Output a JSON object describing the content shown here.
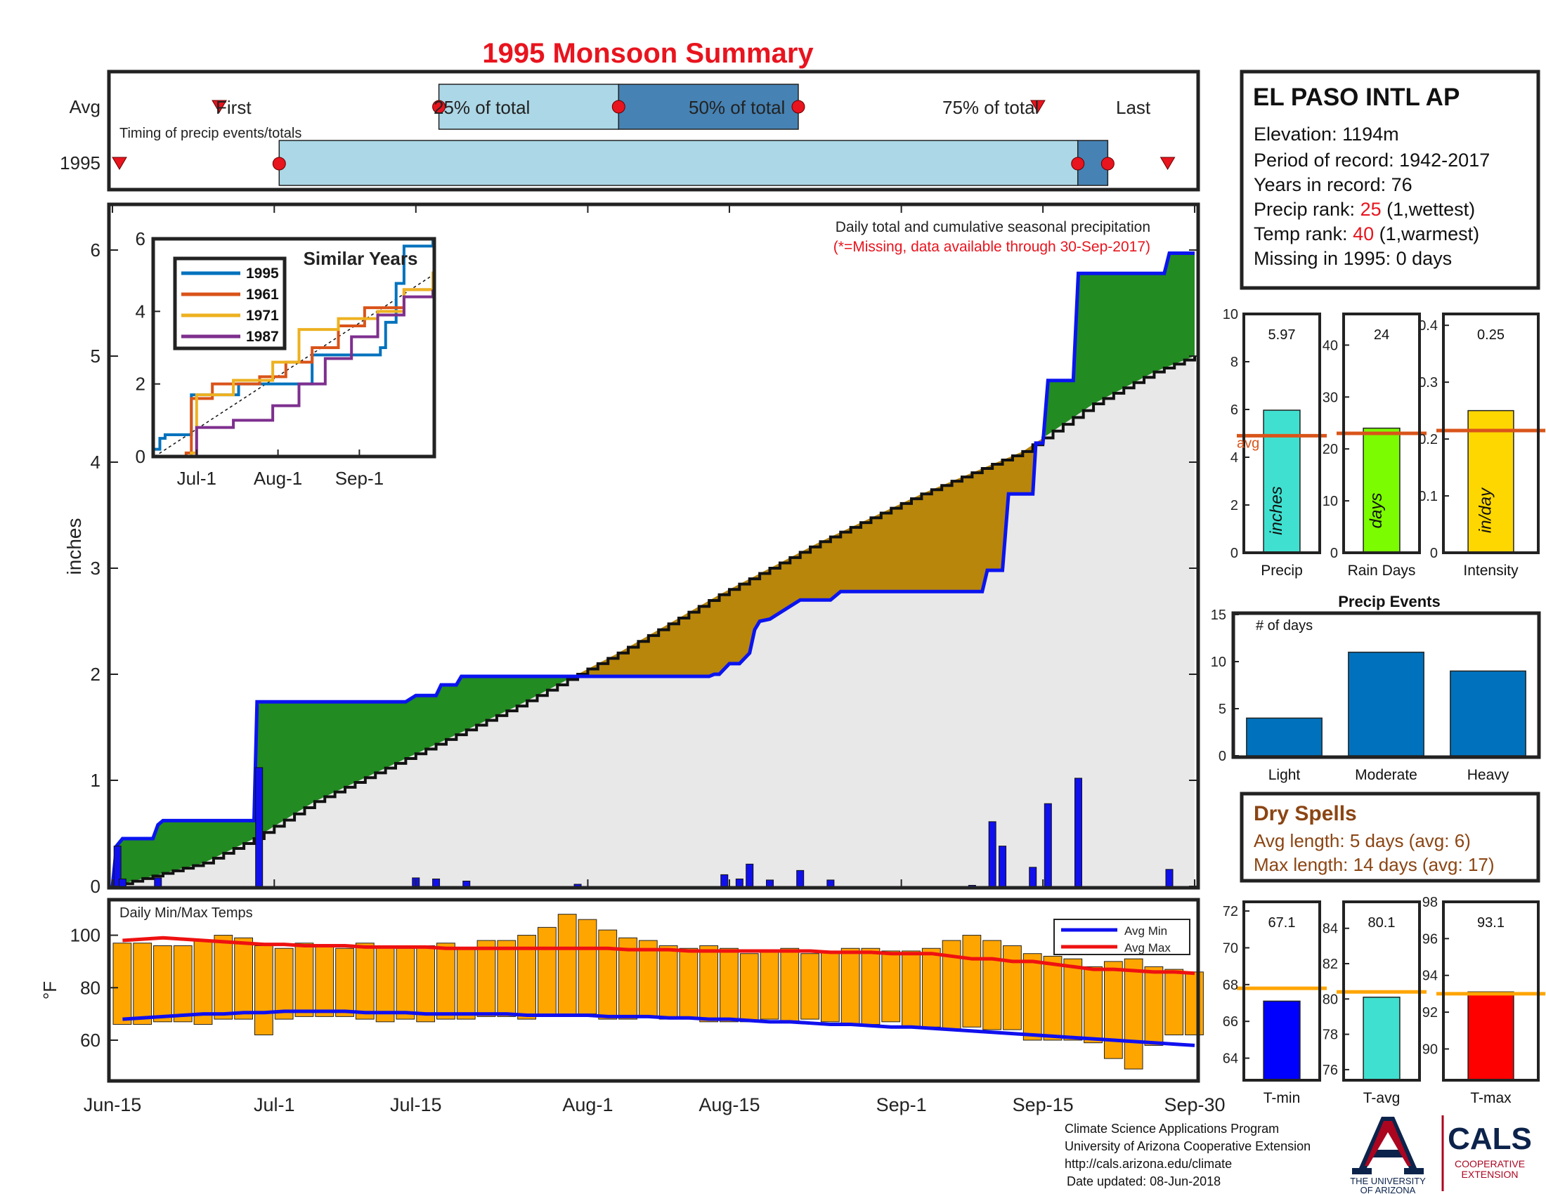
{
  "title": "1995 Monsoon Summary",
  "colors": {
    "title_red": "#e8141e",
    "green": "#228b22",
    "brown": "#b8860b",
    "climo_fill": "#e9e8e8",
    "obs_line": "#0a14f0",
    "bar_blue": "#1010ee",
    "light_blue": "#acd7e6",
    "mid_blue": "#4682b4",
    "orange_bar": "#ffa500",
    "tmax_red": "#ee1111",
    "avg_orange": "#d9541a"
  },
  "timing": {
    "row_labels": [
      "Avg",
      "1995"
    ],
    "note": "Timing of precip events/totals",
    "markers": {
      "first": "First",
      "p25": "25% of total",
      "p50": "50% of total",
      "p75": "75% of total",
      "last": "Last"
    },
    "avg_days": {
      "first": 10,
      "p25": 32,
      "p50": 50,
      "p75": 68,
      "last": 92
    },
    "year_days": {
      "first": 0,
      "p25": 16,
      "p50": 96,
      "p75": 99,
      "last": 105
    }
  },
  "station": {
    "name": "EL PASO INTL AP",
    "elevation": "Elevation: 1194m",
    "period": "Period of record: 1942-2017",
    "years": "Years in record: 76",
    "precip_rank_label": "Precip rank: ",
    "precip_rank_value": "25",
    "precip_rank_note": " (1,wettest)",
    "temp_rank_label": "Temp rank: ",
    "temp_rank_value": "40",
    "temp_rank_note": " (1,warmest)",
    "missing": "Missing in 1995: 0 days"
  },
  "main_chart": {
    "annotation": "Daily total and cumulative seasonal precipitation",
    "missing_note": "(*=Missing, data available through 30-Sep-2017)",
    "ylabel": "inches",
    "x_ticks": [
      "Jun-15",
      "Jul-1",
      "Jul-15",
      "Aug-1",
      "Aug-15",
      "Sep-1",
      "Sep-15",
      "Sep-30"
    ],
    "x_tick_days": [
      0,
      16,
      30,
      47,
      61,
      78,
      92,
      107
    ],
    "y_ticks": [
      "0",
      "1",
      "2",
      "3",
      "4",
      "5",
      "6"
    ],
    "ylim": [
      0,
      6.4
    ]
  },
  "chart_data": [
    {
      "type": "area",
      "title": "Daily total and cumulative seasonal precipitation",
      "ylabel": "inches",
      "x_unit": "day of season (Jun-15 = 0)",
      "ylim": [
        0,
        6.4
      ],
      "series": [
        {
          "name": "1995",
          "points": [
            [
              0,
              0
            ],
            [
              0.4,
              0.38
            ],
            [
              1,
              0.45
            ],
            [
              4,
              0.45
            ],
            [
              4.5,
              0.58
            ],
            [
              5,
              0.62
            ],
            [
              14,
              0.62
            ],
            [
              14.3,
              1.74
            ],
            [
              29,
              1.74
            ],
            [
              30,
              1.8
            ],
            [
              32,
              1.8
            ],
            [
              32.5,
              1.9
            ],
            [
              34,
              1.9
            ],
            [
              34.5,
              1.98
            ],
            [
              59,
              1.98
            ],
            [
              59.5,
              2.0
            ],
            [
              60,
              2.0
            ],
            [
              61,
              2.1
            ],
            [
              62,
              2.1
            ],
            [
              63,
              2.2
            ],
            [
              63.5,
              2.42
            ],
            [
              64,
              2.5
            ],
            [
              65,
              2.52
            ],
            [
              66,
              2.58
            ],
            [
              68,
              2.7
            ],
            [
              71,
              2.7
            ],
            [
              72,
              2.78
            ],
            [
              86,
              2.78
            ],
            [
              86.5,
              2.98
            ],
            [
              88,
              2.98
            ],
            [
              88.6,
              3.7
            ],
            [
              91,
              3.7
            ],
            [
              91.3,
              4.18
            ],
            [
              92,
              4.18
            ],
            [
              92.5,
              4.77
            ],
            [
              95,
              4.77
            ],
            [
              95.5,
              5.78
            ],
            [
              104,
              5.78
            ],
            [
              104.5,
              5.97
            ],
            [
              107,
              5.97
            ]
          ]
        },
        {
          "name": "Avg",
          "points": [
            [
              0,
              0
            ],
            [
              9,
              0.22
            ],
            [
              14,
              0.45
            ],
            [
              20,
              0.8
            ],
            [
              30,
              1.25
            ],
            [
              40,
              1.7
            ],
            [
              50,
              2.2
            ],
            [
              60,
              2.75
            ],
            [
              70,
              3.25
            ],
            [
              80,
              3.7
            ],
            [
              90,
              4.1
            ],
            [
              97,
              4.55
            ],
            [
              103,
              4.85
            ],
            [
              107,
              5.0
            ]
          ]
        }
      ]
    },
    {
      "type": "bar",
      "title": "Daily precipitation",
      "x_unit": "day of season (Jun-15 = 0)",
      "x": [
        0.5,
        1,
        4.5,
        14.5,
        30,
        32,
        35,
        46,
        60.5,
        62,
        63,
        65,
        68,
        71,
        85,
        87,
        88,
        91,
        92.5,
        95.5,
        104.5
      ],
      "values": [
        0.38,
        0.07,
        0.08,
        1.12,
        0.08,
        0.07,
        0.05,
        0.02,
        0.11,
        0.07,
        0.21,
        0.06,
        0.15,
        0.06,
        0.01,
        0.61,
        0.38,
        0.18,
        0.78,
        1.02,
        0.16
      ]
    },
    {
      "type": "line",
      "title": "Similar Years",
      "x_ticks": [
        "Jul-1",
        "Aug-1",
        "Sep-1"
      ],
      "y_ticks": [
        "0",
        "2",
        "4",
        "6"
      ],
      "ylim": [
        0,
        6
      ],
      "series": [
        {
          "name": "1995",
          "points": [
            [
              0,
              0.2
            ],
            [
              2,
              0.5
            ],
            [
              4,
              0.6
            ],
            [
              14,
              1.7
            ],
            [
              32,
              2.0
            ],
            [
              60,
              2.8
            ],
            [
              86,
              3
            ],
            [
              88,
              3.7
            ],
            [
              92,
              4.77
            ],
            [
              95,
              5.8
            ],
            [
              106,
              5.97
            ]
          ]
        },
        {
          "name": "1961",
          "points": [
            [
              0,
              0
            ],
            [
              12,
              0.1
            ],
            [
              14,
              1.6
            ],
            [
              22,
              2.0
            ],
            [
              40,
              2.2
            ],
            [
              50,
              2.6
            ],
            [
              60,
              3.0
            ],
            [
              70,
              3.6
            ],
            [
              80,
              4.1
            ],
            [
              95,
              4.6
            ],
            [
              106,
              5.0
            ]
          ]
        },
        {
          "name": "1971",
          "points": [
            [
              0,
              0
            ],
            [
              14,
              0.1
            ],
            [
              16,
              1.7
            ],
            [
              30,
              2.1
            ],
            [
              45,
              2.6
            ],
            [
              55,
              3.5
            ],
            [
              70,
              3.8
            ],
            [
              85,
              4.0
            ],
            [
              95,
              4.6
            ],
            [
              106,
              5.1
            ]
          ]
        },
        {
          "name": "1987",
          "points": [
            [
              0,
              0
            ],
            [
              16,
              0.8
            ],
            [
              30,
              1.0
            ],
            [
              45,
              1.4
            ],
            [
              55,
              2.0
            ],
            [
              65,
              2.7
            ],
            [
              75,
              3.3
            ],
            [
              85,
              3.9
            ],
            [
              95,
              4.4
            ],
            [
              106,
              4.6
            ]
          ]
        }
      ]
    },
    {
      "type": "bar",
      "title": "Daily Min/Max Temps",
      "ylabel": "°F",
      "y_ticks": [
        "60",
        "80",
        "100"
      ],
      "ylim": [
        45,
        113
      ],
      "x_unit": "day of season (Jun-15 = 0)",
      "legend": [
        "Avg Min",
        "Avg Max"
      ],
      "days": [
        0,
        2,
        4,
        6,
        8,
        10,
        12,
        14,
        16,
        18,
        20,
        22,
        24,
        26,
        28,
        30,
        32,
        34,
        36,
        38,
        40,
        42,
        44,
        46,
        48,
        50,
        52,
        54,
        56,
        58,
        60,
        62,
        64,
        66,
        68,
        70,
        72,
        74,
        76,
        78,
        80,
        82,
        84,
        86,
        88,
        90,
        92,
        94,
        96,
        98,
        100,
        102,
        104,
        106
      ],
      "tmax": [
        97,
        97,
        96,
        96,
        98,
        100,
        99,
        96,
        95,
        97,
        96,
        95,
        97,
        96,
        95,
        96,
        97,
        95,
        98,
        98,
        100,
        103,
        108,
        106,
        102,
        99,
        98,
        96,
        95,
        96,
        95,
        93,
        94,
        95,
        93,
        94,
        95,
        95,
        94,
        94,
        95,
        98,
        100,
        98,
        96,
        93,
        92,
        91,
        88,
        90,
        91,
        88,
        87,
        86
      ],
      "tmin": [
        66,
        66,
        67,
        67,
        66,
        68,
        68,
        62,
        68,
        69,
        69,
        69,
        68,
        67,
        68,
        67,
        68,
        68,
        69,
        69,
        68,
        69,
        69,
        70,
        68,
        68,
        69,
        68,
        68,
        67,
        67,
        67,
        68,
        67,
        68,
        67,
        66,
        66,
        67,
        65,
        65,
        64,
        65,
        64,
        64,
        60,
        60,
        60,
        59,
        53,
        49,
        58,
        62,
        62
      ],
      "avg_max": [
        98,
        98.5,
        99,
        98.5,
        98,
        97.5,
        97,
        96.5,
        96.5,
        96,
        96,
        96,
        95.5,
        95.5,
        95.5,
        95.5,
        95,
        95,
        95,
        95,
        95,
        95,
        95,
        95,
        95,
        94.5,
        94.5,
        94.5,
        94,
        94,
        94,
        94,
        94,
        94,
        94,
        93.5,
        93.5,
        93.5,
        93,
        93,
        93,
        92,
        91,
        91,
        90,
        90,
        89,
        88,
        87,
        87,
        86.5,
        86,
        86,
        85.5
      ],
      "avg_min": [
        68,
        68.5,
        69,
        69.5,
        70,
        70,
        70.5,
        70.5,
        71,
        71,
        71,
        71,
        70.5,
        70.5,
        70.5,
        70,
        70,
        70,
        70,
        70,
        69.5,
        69.5,
        69.5,
        69.5,
        69,
        69,
        69,
        68.5,
        68.5,
        68,
        68,
        67.5,
        67,
        67,
        66.5,
        66,
        66,
        65.5,
        65,
        65,
        64.5,
        64,
        63.5,
        63,
        62.5,
        62,
        61.5,
        61,
        60.5,
        60,
        59.5,
        59,
        58.5,
        58
      ]
    },
    {
      "type": "bar",
      "title": "Precip",
      "categories": [
        "Precip"
      ],
      "values": [
        5.97
      ],
      "avg": 4.9,
      "ylim": [
        0,
        10
      ],
      "y_ticks": [
        "0",
        "2",
        "4",
        "6",
        "8",
        "10"
      ]
    },
    {
      "type": "bar",
      "title": "Rain Days",
      "categories": [
        "Rain Days"
      ],
      "values": [
        24
      ],
      "avg": 23,
      "ylim": [
        0,
        46
      ],
      "y_ticks": [
        "0",
        "10",
        "20",
        "30",
        "40"
      ]
    },
    {
      "type": "bar",
      "title": "Intensity",
      "categories": [
        "Intensity"
      ],
      "values": [
        0.25
      ],
      "avg": 0.215,
      "ylim": [
        0,
        0.42
      ],
      "y_ticks": [
        "0",
        "0.1",
        "0.2",
        "0.3",
        "0.4"
      ]
    },
    {
      "type": "bar",
      "title": "Precip Events",
      "ylabel": "# of days",
      "categories": [
        "Light",
        "Moderate",
        "Heavy"
      ],
      "values": [
        4,
        11,
        9
      ],
      "ylim": [
        0,
        15
      ],
      "y_ticks": [
        "0",
        "5",
        "10",
        "15"
      ]
    },
    {
      "type": "bar",
      "title": "T-min",
      "categories": [
        "T-min"
      ],
      "values": [
        67.1
      ],
      "avg": 67.8,
      "ylim": [
        62.8,
        72.5
      ],
      "y_ticks": [
        "64",
        "66",
        "68",
        "70",
        "72"
      ]
    },
    {
      "type": "bar",
      "title": "T-avg",
      "categories": [
        "T-avg"
      ],
      "values": [
        80.1
      ],
      "avg": 80.4,
      "ylim": [
        75.4,
        85.5
      ],
      "y_ticks": [
        "76",
        "78",
        "80",
        "82",
        "84"
      ]
    },
    {
      "type": "bar",
      "title": "T-max",
      "categories": [
        "T-max"
      ],
      "values": [
        93.1
      ],
      "avg": 93.0,
      "ylim": [
        88.3,
        98
      ],
      "y_ticks": [
        "90",
        "92",
        "94",
        "96",
        "98"
      ]
    }
  ],
  "side_labels": {
    "precip_value": "5.97",
    "raindays_value": "24",
    "intensity_value": "0.25",
    "precip_unit": "inches",
    "raindays_unit": "days",
    "intensity_unit": "in/day",
    "avg_label": "avg",
    "precip_label": "Precip",
    "raindays_label": "Rain Days",
    "intensity_label": "Intensity",
    "events_title": "Precip Events",
    "events_ylabel": "# of days",
    "tmin_value": "67.1",
    "tavg_value": "80.1",
    "tmax_value": "93.1",
    "tmin_label": "T-min",
    "tavg_label": "T-avg",
    "tmax_label": "T-max"
  },
  "similar": {
    "title": "Similar Years",
    "x_ticks": [
      "Jul-1",
      "Aug-1",
      "Sep-1"
    ],
    "y_ticks": [
      "0",
      "2",
      "4",
      "6"
    ]
  },
  "temps": {
    "title": "Daily Min/Max Temps",
    "ylabel": "°F",
    "legend_min": "Avg Min",
    "legend_max": "Avg Max"
  },
  "dry_spells": {
    "title": "Dry Spells",
    "avg": "Avg length: 5 days (avg: 6)",
    "max": "Max length: 14 days (avg: 17)"
  },
  "footer": {
    "line1": "Climate Science Applications Program",
    "line2": "University of Arizona Cooperative Extension",
    "line3": "http://cals.arizona.edu/climate",
    "line4": "Date updated: 08-Jun-2018"
  },
  "logos": {
    "ua_line1": "THE UNIVERSITY",
    "ua_line2": "OF ARIZONA",
    "cals": "CALS",
    "cals_line1": "COOPERATIVE",
    "cals_line2": "EXTENSION"
  }
}
